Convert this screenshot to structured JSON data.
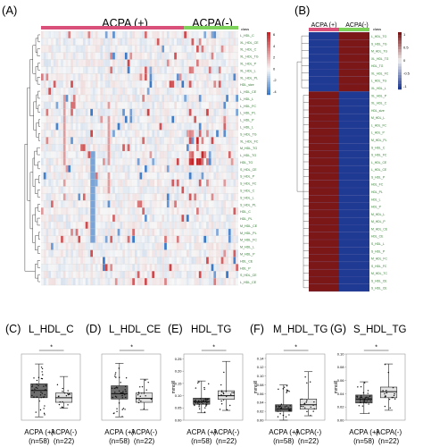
{
  "panels": {
    "A": {
      "panel_label": "(A)",
      "group_labels": [
        "ACPA (+)",
        "ACPA(-)"
      ],
      "class_label": "class",
      "legend_ticks": [
        "6",
        "4",
        "2",
        "0",
        "-2",
        "-4"
      ],
      "row_labels": [
        "L_HDL_C",
        "XL_HDL_CE",
        "XL_HDL_C",
        "XL_HDL_TG",
        "XL_HDL_P",
        "XL_HDL_L",
        "XL_HDL_PL",
        "HDL_size",
        "L_HDL_CE",
        "L_HDL_L",
        "L_HDL_FC",
        "L_HDL_PL",
        "L_HDL_P",
        "L_HDL_L",
        "S_HDL_TG",
        "XL_HDL_FC",
        "M_HDL_TG",
        "L_HDL_TG",
        "HDL_TG",
        "S_HDL_CE",
        "S_HDL_P",
        "S_HDL_FC",
        "S_HDL_C",
        "S_HDL_L",
        "S_HDL_PL",
        "HDL_C",
        "HDL_PL",
        "M_HDL_CE",
        "M_HDL_PL",
        "M_HDL_FC",
        "M_HDL_L",
        "M_HDL_P",
        "HDL_CE",
        "HDL_P",
        "S_HDL_CE",
        "L_HDL_CE"
      ]
    },
    "B": {
      "panel_label": "(B)",
      "group_labels": [
        "ACPA (+)",
        "ACPA(-)"
      ],
      "class_label": "class",
      "legend_ticks": [
        "1",
        "0.5",
        "0",
        "-0.5",
        "-1"
      ],
      "row_labels": [
        "L_HDL_TG",
        "S_HDL_TG",
        "M_HDL_TG",
        "XL_HDL_TG",
        "HDL_TG",
        "XL_HDL_FC",
        "L_HDL_TG",
        "XL_HDL_L",
        "XL_HDL_P",
        "XL_HDL_C",
        "HDL_size",
        "M_HDL_L",
        "L_HDL_FC",
        "L_HDL_P",
        "M_HDL_PL",
        "S_HDL_C",
        "S_HDL_FC",
        "L_HDL_CE",
        "L_HDL_CE",
        "S_HDL_P",
        "HDL_FC",
        "HDL_PL",
        "HDL_L",
        "HDL_P",
        "M_HDL_L",
        "M_HDL_P",
        "M_HDL_CE",
        "HDL_CE",
        "S_HDL_L",
        "S_HDL_P",
        "M_HDL_FC",
        "S_HDL_FC",
        "M_HDL_TC",
        "S_HDL_CE",
        "S_HDL_CE"
      ]
    }
  },
  "chart_data": [
    {
      "id": "C",
      "type": "box",
      "panel_label": "(C)",
      "title": "L_HDL_C",
      "ylabel": "",
      "significance": "*",
      "categories": [
        "ACPA (+)",
        "ACPA(-)"
      ],
      "sample_sizes": [
        "(n=58)",
        "(n=22)"
      ],
      "boxes": [
        {
          "min": 0.05,
          "q1": 0.34,
          "median": 0.45,
          "q3": 0.55,
          "max": 0.85
        },
        {
          "min": 0.18,
          "q1": 0.27,
          "median": 0.34,
          "q3": 0.41,
          "max": 0.66
        }
      ],
      "ylim": [
        0,
        1
      ]
    },
    {
      "id": "D",
      "type": "box",
      "panel_label": "(D)",
      "title": "L_HDL_CE",
      "ylabel": "",
      "significance": "*",
      "categories": [
        "ACPA (+)",
        "ACPA(-)"
      ],
      "sample_sizes": [
        "(n=58)",
        "(n=22)"
      ],
      "boxes": [
        {
          "min": 0.05,
          "q1": 0.32,
          "median": 0.4,
          "q3": 0.52,
          "max": 0.86
        },
        {
          "min": 0.16,
          "q1": 0.27,
          "median": 0.33,
          "q3": 0.41,
          "max": 0.62
        }
      ],
      "ylim": [
        0,
        1
      ]
    },
    {
      "id": "E",
      "type": "box",
      "panel_label": "(E)",
      "title": "HDL_TG",
      "ylabel": "mmol/l",
      "significance": "*",
      "categories": [
        "ACPA (+)",
        "ACPA(-)"
      ],
      "sample_sizes": [
        "(n=58)",
        "(n=22)"
      ],
      "yticks": [
        "0.25",
        "0.20",
        "0.15",
        "0.10",
        "0.05",
        "0.00"
      ],
      "boxes": [
        {
          "min": 0.03,
          "q1": 0.065,
          "median": 0.075,
          "q3": 0.09,
          "max": 0.16
        },
        {
          "min": 0.04,
          "q1": 0.085,
          "median": 0.1,
          "q3": 0.12,
          "max": 0.24
        }
      ],
      "ylim": [
        0,
        0.27
      ]
    },
    {
      "id": "F",
      "type": "box",
      "panel_label": "(F)",
      "title": "M_HDL_TG",
      "ylabel": "mmol/l",
      "significance": "*",
      "categories": [
        "ACPA (+)",
        "ACPA(-)"
      ],
      "sample_sizes": [
        "(n=58)",
        "(n=22)"
      ],
      "yticks": [
        "0.14",
        "0.12",
        "0.10",
        "0.08",
        "0.06",
        "0.04",
        "0.02",
        "0.00"
      ],
      "boxes": [
        {
          "min": 0.0,
          "q1": 0.02,
          "median": 0.025,
          "q3": 0.035,
          "max": 0.08
        },
        {
          "min": 0.01,
          "q1": 0.025,
          "median": 0.035,
          "q3": 0.048,
          "max": 0.11
        }
      ],
      "ylim": [
        0,
        0.15
      ]
    },
    {
      "id": "G",
      "type": "box",
      "panel_label": "(G)",
      "title": "S_HDL_TG",
      "ylabel": "mmol/l",
      "significance": "*",
      "categories": [
        "ACPA (+)",
        "ACPA(-)"
      ],
      "sample_sizes": [
        "(n=58)",
        "(n=22)"
      ],
      "yticks": [
        "0.10",
        "0.08",
        "0.06",
        "0.04",
        "0.02",
        "0.00"
      ],
      "boxes": [
        {
          "min": 0.01,
          "q1": 0.026,
          "median": 0.032,
          "q3": 0.038,
          "max": 0.058
        },
        {
          "min": 0.015,
          "q1": 0.034,
          "median": 0.043,
          "q3": 0.05,
          "max": 0.085
        }
      ],
      "ylim": [
        0,
        0.1
      ]
    }
  ],
  "colors": {
    "acpa_pos": "#d9507a",
    "acpa_neg": "#7cd25a",
    "heat_low": "#3a79c7",
    "heat_mid": "#f7f7f7",
    "heat_high": "#c4262a",
    "b_red": "#7b1717",
    "b_blue": "#1f3a93",
    "box_pos": "#6e6e6e",
    "box_neg": "#e3e3e3"
  }
}
